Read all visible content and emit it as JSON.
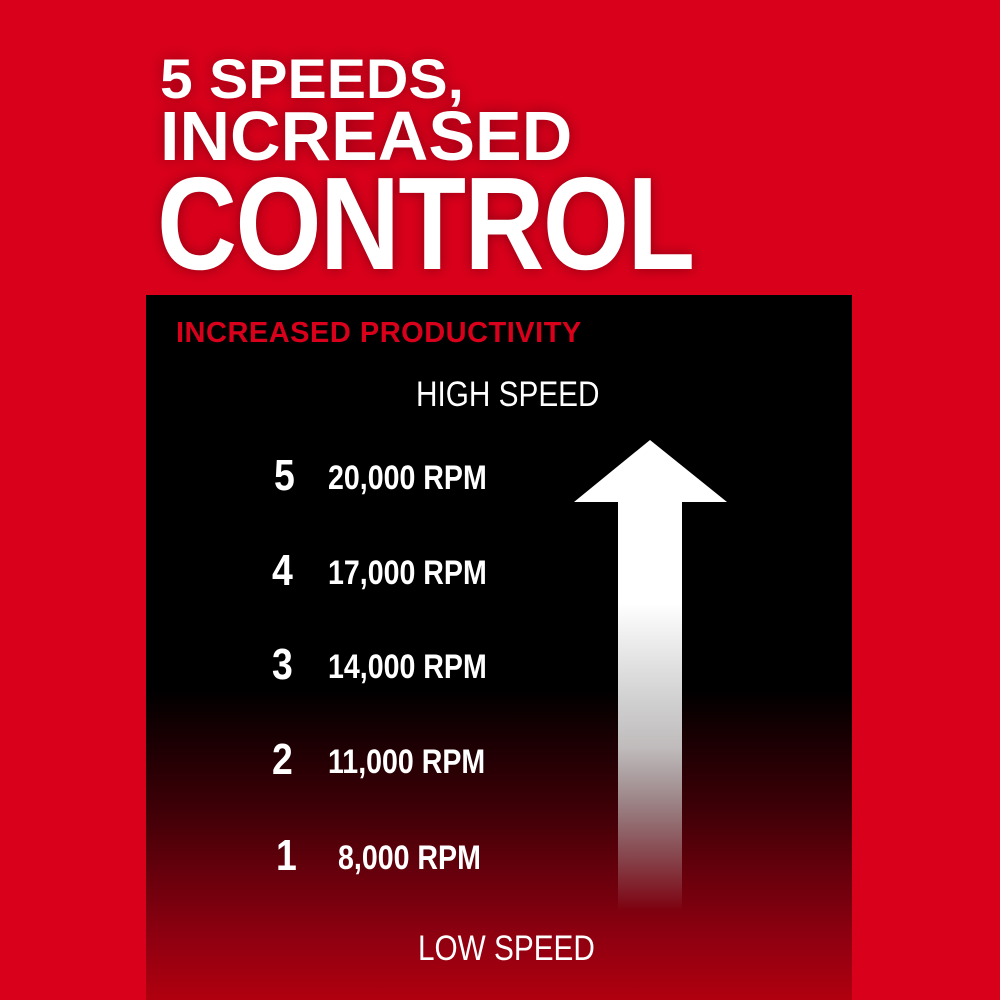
{
  "headline": {
    "line1": "5 SPEEDS,",
    "line2": "INCREASED",
    "line3": "CONTROL"
  },
  "panel": {
    "title": "INCREASED PRODUCTIVITY",
    "high_label": "HIGH SPEED",
    "low_label": "LOW SPEED",
    "speeds": [
      {
        "level": "5",
        "rpm": "20,000 RPM"
      },
      {
        "level": "4",
        "rpm": "17,000 RPM"
      },
      {
        "level": "3",
        "rpm": "14,000 RPM"
      },
      {
        "level": "2",
        "rpm": "11,000 RPM"
      },
      {
        "level": "1",
        "rpm": "8,000 RPM"
      }
    ]
  },
  "colors": {
    "brand_red": "#d9001b",
    "panel": "#000000",
    "text": "#ffffff"
  }
}
